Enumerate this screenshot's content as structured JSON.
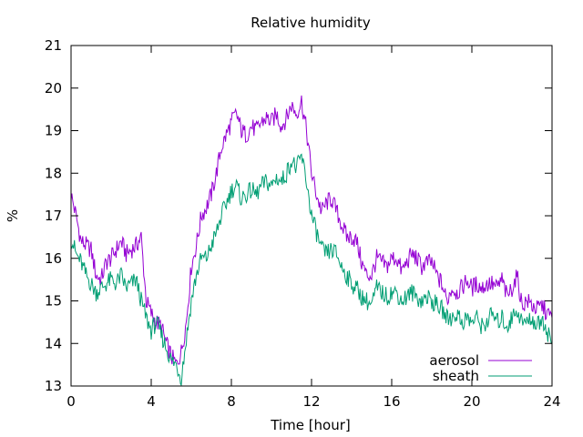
{
  "chart_data": {
    "type": "line",
    "title": "Relative humidity",
    "xlabel": "Time [hour]",
    "ylabel": "%",
    "xlim": [
      0,
      24
    ],
    "ylim": [
      13,
      21
    ],
    "xticks": [
      0,
      4,
      8,
      12,
      16,
      20,
      24
    ],
    "yticks": [
      13,
      14,
      15,
      16,
      17,
      18,
      19,
      20,
      21
    ],
    "grid": false,
    "legend_position": "bottom-right",
    "series": [
      {
        "name": "aerosol",
        "color": "#9400d3",
        "x": [
          0,
          0.25,
          0.5,
          0.75,
          1,
          1.25,
          1.5,
          1.75,
          2,
          2.25,
          2.5,
          2.75,
          3,
          3.25,
          3.5,
          3.75,
          4,
          4.25,
          4.5,
          4.75,
          5,
          5.25,
          5.5,
          5.75,
          6,
          6.25,
          6.5,
          6.75,
          7,
          7.25,
          7.5,
          7.75,
          8,
          8.25,
          8.5,
          8.75,
          9,
          9.25,
          9.5,
          9.75,
          10,
          10.25,
          10.5,
          10.75,
          11,
          11.25,
          11.5,
          11.75,
          12,
          12.25,
          12.5,
          12.75,
          13,
          13.25,
          13.5,
          13.75,
          14,
          14.25,
          14.5,
          14.75,
          15,
          15.25,
          15.5,
          15.75,
          16,
          16.25,
          16.5,
          16.75,
          17,
          17.25,
          17.5,
          17.75,
          18,
          18.25,
          18.5,
          18.75,
          19,
          19.25,
          19.5,
          19.75,
          20,
          20.25,
          20.5,
          20.75,
          21,
          21.25,
          21.5,
          21.75,
          22,
          22.25,
          22.5,
          22.75,
          23,
          23.25,
          23.5,
          23.75,
          24
        ],
        "y": [
          17.5,
          17.0,
          16.4,
          16.3,
          16.2,
          15.6,
          15.5,
          15.9,
          16.0,
          16.2,
          16.4,
          16.1,
          16.2,
          16.3,
          16.5,
          15.0,
          14.7,
          14.5,
          14.4,
          14.0,
          13.7,
          13.5,
          13.8,
          14.5,
          15.8,
          16.3,
          17.0,
          17.2,
          17.5,
          18.0,
          18.6,
          18.9,
          19.2,
          19.4,
          19.0,
          18.9,
          19.1,
          19.0,
          19.2,
          19.3,
          19.2,
          19.4,
          19.1,
          19.3,
          19.6,
          19.4,
          19.7,
          19.0,
          18.0,
          17.5,
          17.1,
          17.3,
          17.4,
          17.1,
          16.8,
          16.5,
          16.5,
          16.4,
          15.9,
          15.6,
          15.6,
          16.0,
          15.9,
          15.8,
          16.0,
          16.0,
          15.7,
          15.9,
          16.1,
          16.0,
          15.8,
          15.9,
          15.9,
          15.6,
          15.4,
          15.0,
          15.3,
          15.2,
          15.3,
          15.5,
          15.3,
          15.4,
          15.3,
          15.4,
          15.4,
          15.3,
          15.5,
          15.1,
          15.3,
          15.6,
          14.9,
          15.0,
          14.9,
          14.8,
          14.9,
          14.7,
          14.6
        ]
      },
      {
        "name": "sheath",
        "color": "#009e73",
        "x": [
          0,
          0.25,
          0.5,
          0.75,
          1,
          1.25,
          1.5,
          1.75,
          2,
          2.25,
          2.5,
          2.75,
          3,
          3.25,
          3.5,
          3.75,
          4,
          4.25,
          4.5,
          4.75,
          5,
          5.25,
          5.5,
          5.75,
          6,
          6.25,
          6.5,
          6.75,
          7,
          7.25,
          7.5,
          7.75,
          8,
          8.25,
          8.5,
          8.75,
          9,
          9.25,
          9.5,
          9.75,
          10,
          10.25,
          10.5,
          10.75,
          11,
          11.25,
          11.5,
          11.75,
          12,
          12.25,
          12.5,
          12.75,
          13,
          13.25,
          13.5,
          13.75,
          14,
          14.25,
          14.5,
          14.75,
          15,
          15.25,
          15.5,
          15.75,
          16,
          16.25,
          16.5,
          16.75,
          17,
          17.25,
          17.5,
          17.75,
          18,
          18.25,
          18.5,
          18.75,
          19,
          19.25,
          19.5,
          19.75,
          20,
          20.25,
          20.5,
          20.75,
          21,
          21.25,
          21.5,
          21.75,
          22,
          22.25,
          22.5,
          22.75,
          23,
          23.25,
          23.5,
          23.75,
          24
        ],
        "y": [
          16.5,
          16.1,
          15.9,
          15.6,
          15.4,
          15.2,
          15.3,
          15.4,
          15.5,
          15.4,
          15.6,
          15.3,
          15.4,
          15.5,
          15.0,
          14.6,
          14.3,
          14.5,
          14.2,
          13.9,
          13.6,
          13.5,
          13.2,
          14.1,
          15.0,
          15.6,
          16.0,
          16.0,
          16.3,
          16.6,
          17.0,
          17.3,
          17.6,
          17.7,
          17.4,
          17.5,
          17.6,
          17.5,
          17.7,
          17.8,
          17.7,
          17.9,
          17.8,
          18.0,
          18.3,
          18.1,
          18.4,
          17.8,
          17.0,
          16.6,
          16.2,
          16.1,
          16.2,
          16.1,
          15.8,
          15.6,
          15.4,
          15.3,
          15.1,
          15.0,
          14.9,
          15.3,
          15.2,
          15.1,
          15.2,
          15.2,
          15.0,
          15.1,
          15.2,
          15.1,
          15.0,
          15.1,
          15.0,
          14.9,
          14.8,
          14.6,
          14.6,
          14.7,
          14.5,
          14.6,
          14.5,
          14.6,
          14.4,
          14.5,
          14.7,
          14.5,
          14.6,
          14.4,
          14.6,
          14.8,
          14.5,
          14.5,
          14.6,
          14.4,
          14.6,
          14.3,
          14.0
        ]
      }
    ]
  }
}
